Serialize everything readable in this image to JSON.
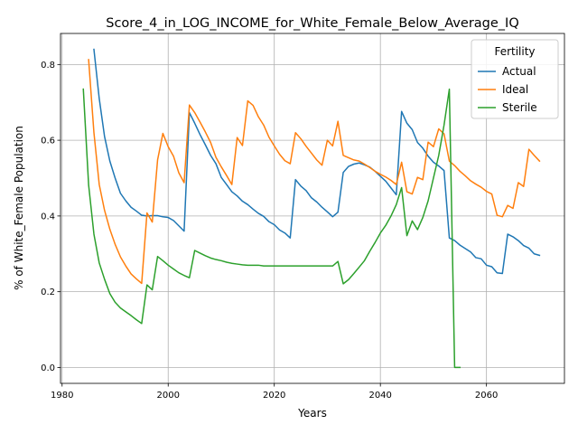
{
  "chart_data": {
    "type": "line",
    "title": "Score_4_in_LOG_INCOME_for_White_Female_Below_Average_IQ",
    "xlabel": "Years",
    "ylabel": "% of White_Female Population",
    "xlim": [
      1979.7,
      2074.7
    ],
    "ylim": [
      -0.042,
      0.882
    ],
    "xticks": [
      1980,
      2000,
      2020,
      2040,
      2060
    ],
    "xtick_labels": [
      "1980",
      "2000",
      "2020",
      "2040",
      "2060"
    ],
    "yticks": [
      0.0,
      0.2,
      0.4,
      0.6,
      0.8
    ],
    "ytick_labels": [
      "0.0",
      "0.2",
      "0.4",
      "0.6",
      "0.8"
    ],
    "grid": true,
    "legend": {
      "title": "Fertility",
      "position": "top-right"
    },
    "series": [
      {
        "name": "Actual",
        "color": "#1f77b4",
        "points": [
          [
            1986,
            0.84
          ],
          [
            1987,
            0.71
          ],
          [
            1988,
            0.61
          ],
          [
            1989,
            0.545
          ],
          [
            1990,
            0.5
          ],
          [
            1991,
            0.46
          ],
          [
            1992,
            0.44
          ],
          [
            1993,
            0.423
          ],
          [
            1994,
            0.413
          ],
          [
            1995,
            0.402
          ],
          [
            1996,
            0.4
          ],
          [
            1997,
            0.401
          ],
          [
            1998,
            0.401
          ],
          [
            1999,
            0.398
          ],
          [
            2000,
            0.396
          ],
          [
            2001,
            0.388
          ],
          [
            2002,
            0.374
          ],
          [
            2003,
            0.36
          ],
          [
            2004,
            0.673
          ],
          [
            2005,
            0.645
          ],
          [
            2006,
            0.615
          ],
          [
            2007,
            0.588
          ],
          [
            2008,
            0.56
          ],
          [
            2009,
            0.538
          ],
          [
            2010,
            0.502
          ],
          [
            2011,
            0.483
          ],
          [
            2012,
            0.464
          ],
          [
            2013,
            0.453
          ],
          [
            2014,
            0.439
          ],
          [
            2015,
            0.43
          ],
          [
            2016,
            0.418
          ],
          [
            2017,
            0.407
          ],
          [
            2018,
            0.399
          ],
          [
            2019,
            0.385
          ],
          [
            2020,
            0.377
          ],
          [
            2021,
            0.363
          ],
          [
            2022,
            0.355
          ],
          [
            2023,
            0.342
          ],
          [
            2024,
            0.496
          ],
          [
            2025,
            0.479
          ],
          [
            2026,
            0.467
          ],
          [
            2027,
            0.448
          ],
          [
            2028,
            0.437
          ],
          [
            2029,
            0.423
          ],
          [
            2030,
            0.411
          ],
          [
            2031,
            0.398
          ],
          [
            2032,
            0.41
          ],
          [
            2033,
            0.515
          ],
          [
            2034,
            0.531
          ],
          [
            2035,
            0.537
          ],
          [
            2036,
            0.54
          ],
          [
            2037,
            0.535
          ],
          [
            2038,
            0.529
          ],
          [
            2039,
            0.518
          ],
          [
            2040,
            0.505
          ],
          [
            2041,
            0.492
          ],
          [
            2042,
            0.474
          ],
          [
            2043,
            0.456
          ],
          [
            2044,
            0.676
          ],
          [
            2045,
            0.645
          ],
          [
            2046,
            0.628
          ],
          [
            2047,
            0.594
          ],
          [
            2048,
            0.579
          ],
          [
            2049,
            0.558
          ],
          [
            2050,
            0.542
          ],
          [
            2051,
            0.532
          ],
          [
            2052,
            0.52
          ],
          [
            2053,
            0.342
          ],
          [
            2054,
            0.335
          ],
          [
            2055,
            0.323
          ],
          [
            2056,
            0.314
          ],
          [
            2057,
            0.305
          ],
          [
            2058,
            0.29
          ],
          [
            2059,
            0.287
          ],
          [
            2060,
            0.27
          ],
          [
            2061,
            0.266
          ],
          [
            2062,
            0.25
          ],
          [
            2063,
            0.248
          ],
          [
            2064,
            0.352
          ],
          [
            2065,
            0.345
          ],
          [
            2066,
            0.335
          ],
          [
            2067,
            0.322
          ],
          [
            2068,
            0.315
          ],
          [
            2069,
            0.3
          ],
          [
            2070,
            0.296
          ]
        ]
      },
      {
        "name": "Ideal",
        "color": "#ff7f0e",
        "points": [
          [
            1985,
            0.813
          ],
          [
            1986,
            0.62
          ],
          [
            1987,
            0.483
          ],
          [
            1988,
            0.415
          ],
          [
            1989,
            0.365
          ],
          [
            1990,
            0.325
          ],
          [
            1991,
            0.292
          ],
          [
            1992,
            0.268
          ],
          [
            1993,
            0.247
          ],
          [
            1994,
            0.234
          ],
          [
            1995,
            0.222
          ],
          [
            1996,
            0.408
          ],
          [
            1997,
            0.384
          ],
          [
            1998,
            0.548
          ],
          [
            1999,
            0.618
          ],
          [
            2000,
            0.583
          ],
          [
            2001,
            0.558
          ],
          [
            2002,
            0.514
          ],
          [
            2003,
            0.488
          ],
          [
            2004,
            0.693
          ],
          [
            2005,
            0.673
          ],
          [
            2006,
            0.648
          ],
          [
            2007,
            0.622
          ],
          [
            2008,
            0.594
          ],
          [
            2009,
            0.555
          ],
          [
            2010,
            0.53
          ],
          [
            2011,
            0.507
          ],
          [
            2012,
            0.483
          ],
          [
            2013,
            0.607
          ],
          [
            2014,
            0.586
          ],
          [
            2015,
            0.704
          ],
          [
            2016,
            0.692
          ],
          [
            2017,
            0.662
          ],
          [
            2018,
            0.64
          ],
          [
            2019,
            0.608
          ],
          [
            2020,
            0.585
          ],
          [
            2021,
            0.563
          ],
          [
            2022,
            0.546
          ],
          [
            2023,
            0.538
          ],
          [
            2024,
            0.62
          ],
          [
            2025,
            0.604
          ],
          [
            2026,
            0.584
          ],
          [
            2027,
            0.566
          ],
          [
            2028,
            0.548
          ],
          [
            2029,
            0.534
          ],
          [
            2030,
            0.6
          ],
          [
            2031,
            0.585
          ],
          [
            2032,
            0.65
          ],
          [
            2033,
            0.56
          ],
          [
            2034,
            0.554
          ],
          [
            2035,
            0.548
          ],
          [
            2036,
            0.545
          ],
          [
            2037,
            0.537
          ],
          [
            2038,
            0.528
          ],
          [
            2039,
            0.518
          ],
          [
            2040,
            0.51
          ],
          [
            2041,
            0.503
          ],
          [
            2042,
            0.494
          ],
          [
            2043,
            0.483
          ],
          [
            2044,
            0.542
          ],
          [
            2045,
            0.464
          ],
          [
            2046,
            0.458
          ],
          [
            2047,
            0.502
          ],
          [
            2048,
            0.496
          ],
          [
            2049,
            0.595
          ],
          [
            2050,
            0.583
          ],
          [
            2051,
            0.63
          ],
          [
            2052,
            0.617
          ],
          [
            2053,
            0.545
          ],
          [
            2054,
            0.533
          ],
          [
            2055,
            0.518
          ],
          [
            2056,
            0.506
          ],
          [
            2057,
            0.493
          ],
          [
            2058,
            0.484
          ],
          [
            2059,
            0.476
          ],
          [
            2060,
            0.465
          ],
          [
            2061,
            0.458
          ],
          [
            2062,
            0.402
          ],
          [
            2063,
            0.398
          ],
          [
            2064,
            0.428
          ],
          [
            2065,
            0.42
          ],
          [
            2066,
            0.488
          ],
          [
            2067,
            0.478
          ],
          [
            2068,
            0.576
          ],
          [
            2069,
            0.56
          ],
          [
            2070,
            0.545
          ]
        ]
      },
      {
        "name": "Sterile",
        "color": "#2ca02c",
        "points": [
          [
            1984,
            0.735
          ],
          [
            1985,
            0.482
          ],
          [
            1986,
            0.352
          ],
          [
            1987,
            0.276
          ],
          [
            1988,
            0.233
          ],
          [
            1989,
            0.195
          ],
          [
            1990,
            0.172
          ],
          [
            1991,
            0.157
          ],
          [
            1992,
            0.147
          ],
          [
            1993,
            0.137
          ],
          [
            1994,
            0.126
          ],
          [
            1995,
            0.116
          ],
          [
            1996,
            0.218
          ],
          [
            1997,
            0.205
          ],
          [
            1998,
            0.293
          ],
          [
            1999,
            0.282
          ],
          [
            2000,
            0.27
          ],
          [
            2001,
            0.26
          ],
          [
            2002,
            0.25
          ],
          [
            2003,
            0.243
          ],
          [
            2004,
            0.237
          ],
          [
            2005,
            0.309
          ],
          [
            2006,
            0.302
          ],
          [
            2007,
            0.295
          ],
          [
            2008,
            0.289
          ],
          [
            2009,
            0.285
          ],
          [
            2010,
            0.282
          ],
          [
            2011,
            0.278
          ],
          [
            2012,
            0.275
          ],
          [
            2013,
            0.273
          ],
          [
            2014,
            0.271
          ],
          [
            2015,
            0.27
          ],
          [
            2016,
            0.27
          ],
          [
            2017,
            0.27
          ],
          [
            2018,
            0.268
          ],
          [
            2019,
            0.268
          ],
          [
            2020,
            0.268
          ],
          [
            2021,
            0.268
          ],
          [
            2022,
            0.268
          ],
          [
            2023,
            0.268
          ],
          [
            2024,
            0.268
          ],
          [
            2025,
            0.268
          ],
          [
            2026,
            0.268
          ],
          [
            2027,
            0.268
          ],
          [
            2028,
            0.268
          ],
          [
            2029,
            0.268
          ],
          [
            2030,
            0.268
          ],
          [
            2031,
            0.268
          ],
          [
            2032,
            0.28
          ],
          [
            2033,
            0.221
          ],
          [
            2034,
            0.232
          ],
          [
            2035,
            0.248
          ],
          [
            2036,
            0.265
          ],
          [
            2037,
            0.282
          ],
          [
            2038,
            0.307
          ],
          [
            2039,
            0.33
          ],
          [
            2040,
            0.355
          ],
          [
            2041,
            0.375
          ],
          [
            2042,
            0.4
          ],
          [
            2043,
            0.43
          ],
          [
            2044,
            0.475
          ],
          [
            2045,
            0.348
          ],
          [
            2046,
            0.387
          ],
          [
            2047,
            0.364
          ],
          [
            2048,
            0.396
          ],
          [
            2049,
            0.44
          ],
          [
            2050,
            0.5
          ],
          [
            2051,
            0.56
          ],
          [
            2052,
            0.64
          ],
          [
            2053,
            0.735
          ],
          [
            2054,
            0.0
          ],
          [
            2055,
            0.0
          ]
        ]
      }
    ]
  }
}
